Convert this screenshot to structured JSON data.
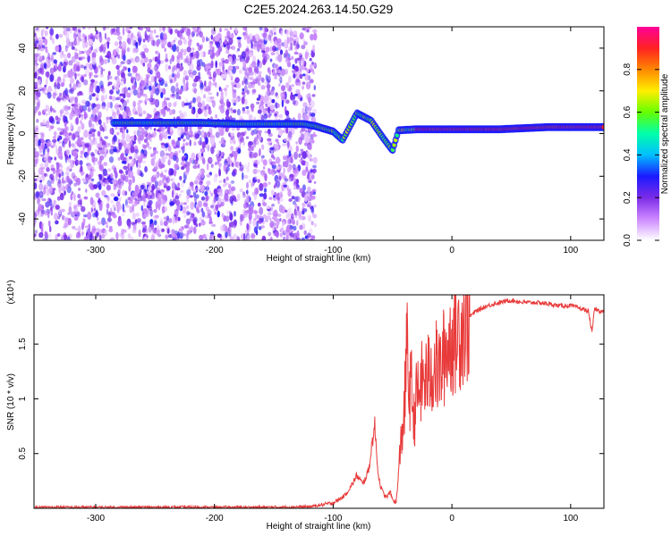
{
  "figure_title": "C2E5.2024.263.14.50.G29",
  "chart_data": [
    {
      "type": "heatmap",
      "xlabel": "Height of straight line (km)",
      "ylabel": "Frequency (Hz)",
      "xlim": [
        -352,
        128
      ],
      "ylim": [
        -50,
        50
      ],
      "xticks": [
        -300,
        -200,
        -100,
        0,
        100
      ],
      "yticks": [
        -40,
        -20,
        0,
        20,
        40
      ],
      "colorbar": {
        "label": "Normalized spectral amplitude",
        "range": [
          0,
          1
        ],
        "ticks": [
          "0.0",
          "0.2",
          "0.4",
          "0.6",
          "0.8"
        ],
        "colors": [
          "#ffffff",
          "#cc88ff",
          "#7b2be8",
          "#1a1aff",
          "#00bfff",
          "#00ffaa",
          "#66ff00",
          "#ffee00",
          "#ff8800",
          "#ff2222",
          "#ff0099"
        ]
      },
      "noise_region": {
        "x_from": -352,
        "x_to": -115,
        "freq_from": -50,
        "freq_to": 50
      },
      "ridge": [
        {
          "x": -285,
          "f": 5
        },
        {
          "x": -250,
          "f": 5
        },
        {
          "x": -210,
          "f": 5
        },
        {
          "x": -180,
          "f": 4.5
        },
        {
          "x": -150,
          "f": 4.5
        },
        {
          "x": -125,
          "f": 4.5
        },
        {
          "x": -115,
          "f": 3.5
        },
        {
          "x": -100,
          "f": 1
        },
        {
          "x": -92,
          "f": -3
        },
        {
          "x": -80,
          "f": 9.5
        },
        {
          "x": -68,
          "f": 6
        },
        {
          "x": -58,
          "f": -2
        },
        {
          "x": -50,
          "f": -8
        },
        {
          "x": -45,
          "f": 1.5
        },
        {
          "x": -30,
          "f": 2
        },
        {
          "x": 0,
          "f": 2
        },
        {
          "x": 40,
          "f": 2
        },
        {
          "x": 80,
          "f": 3
        },
        {
          "x": 110,
          "f": 3
        },
        {
          "x": 128,
          "f": 3
        }
      ]
    },
    {
      "type": "line",
      "xlabel": "Height of straight line (km)",
      "ylabel": "SNR (10 * v/v)",
      "scale_label": "(x10⁴)",
      "xlim": [
        -352,
        128
      ],
      "ylim": [
        0,
        1.95
      ],
      "xticks": [
        -300,
        -200,
        -100,
        0,
        100
      ],
      "yticks": [
        "0.5",
        "1",
        "1.5"
      ],
      "series": [
        {
          "color": "#e83a3a",
          "x": [
            -352,
            -300,
            -250,
            -200,
            -150,
            -120,
            -110,
            -100,
            -95,
            -90,
            -85,
            -80,
            -75,
            -70,
            -67,
            -65,
            -62,
            -60,
            -57,
            -55,
            -52,
            -50,
            -47,
            -45,
            -43,
            -40,
            -38,
            -36,
            -34,
            -32,
            -30,
            -25,
            -20,
            -15,
            -10,
            -5,
            0,
            5,
            10,
            15,
            20,
            30,
            40,
            50,
            60,
            70,
            80,
            90,
            100,
            110,
            115,
            118,
            120,
            125,
            128
          ],
          "y": [
            0.01,
            0.01,
            0.01,
            0.01,
            0.01,
            0.015,
            0.03,
            0.05,
            0.08,
            0.12,
            0.2,
            0.3,
            0.22,
            0.35,
            0.62,
            0.75,
            0.3,
            0.2,
            0.12,
            0.1,
            0.15,
            0.08,
            0.05,
            0.3,
            0.6,
            0.9,
            1.5,
            1.05,
            1.1,
            0.8,
            1.0,
            1.15,
            1.2,
            1.3,
            1.25,
            1.45,
            1.55,
            1.6,
            1.7,
            1.75,
            1.8,
            1.85,
            1.88,
            1.9,
            1.88,
            1.88,
            1.87,
            1.85,
            1.85,
            1.82,
            1.8,
            1.6,
            1.82,
            1.8,
            1.8
          ]
        }
      ]
    }
  ]
}
